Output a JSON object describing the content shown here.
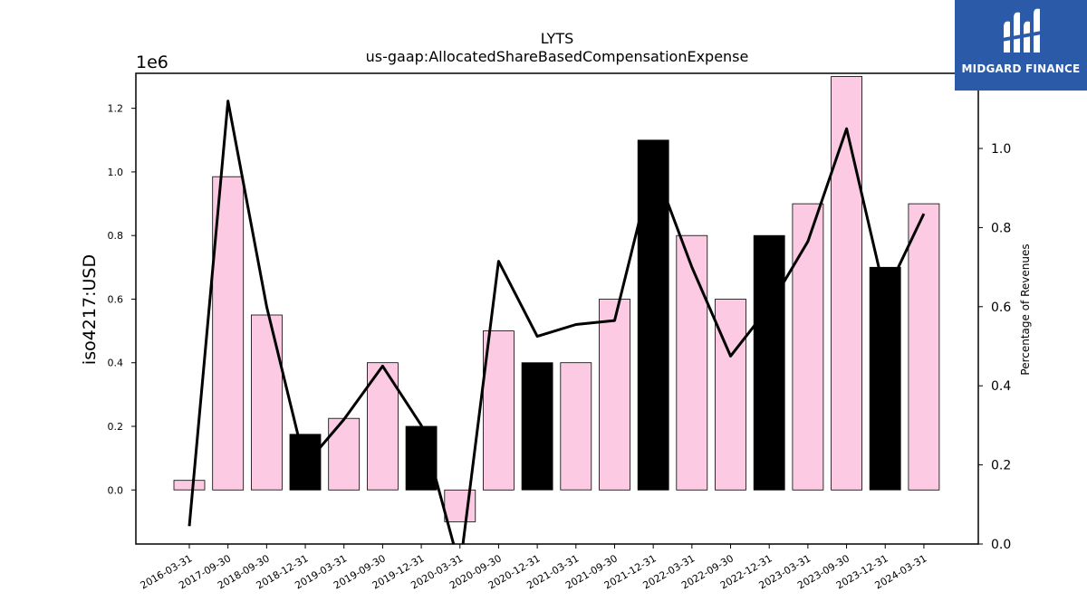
{
  "logo": {
    "text": "MIDGARD FINANCE",
    "background": "#2a5aa8"
  },
  "chart_data": {
    "type": "bar",
    "title": "LYTS",
    "subtitle": "us-gaap:AllocatedShareBasedCompensationExpense",
    "ylabel": "iso4217:USD",
    "y2label": "Percentage of Revenues",
    "y_offset_label": "1e6",
    "categories": [
      "2016-03-31",
      "2017-09-30",
      "2018-09-30",
      "2018-12-31",
      "2019-03-31",
      "2019-09-30",
      "2019-12-31",
      "2020-03-31",
      "2020-09-30",
      "2020-12-31",
      "2021-03-31",
      "2021-09-30",
      "2021-12-31",
      "2022-03-31",
      "2022-09-30",
      "2022-12-31",
      "2023-03-31",
      "2023-09-30",
      "2023-12-31",
      "2024-03-31"
    ],
    "series": [
      {
        "type": "bar",
        "values": [
          30000,
          985000,
          550000,
          175000,
          225000,
          400000,
          200000,
          -100000,
          500000,
          400000,
          400000,
          600000,
          1100000,
          800000,
          600000,
          800000,
          900000,
          1300000,
          700000,
          900000
        ],
        "bar_colors": [
          "#fccbe3",
          "#fccbe3",
          "#fccbe3",
          "#000000",
          "#fccbe3",
          "#fccbe3",
          "#000000",
          "#fccbe3",
          "#fccbe3",
          "#000000",
          "#fccbe3",
          "#fccbe3",
          "#000000",
          "#fccbe3",
          "#fccbe3",
          "#000000",
          "#fccbe3",
          "#fccbe3",
          "#000000",
          "#fccbe3"
        ]
      },
      {
        "type": "line",
        "axis": "right",
        "color": "#000000",
        "values": [
          0.045,
          1.12,
          0.6,
          0.2,
          0.315,
          0.45,
          0.3,
          -0.06,
          0.715,
          0.525,
          0.555,
          0.565,
          0.96,
          0.7,
          0.475,
          0.6,
          0.765,
          1.05,
          0.63,
          0.835
        ]
      }
    ],
    "ylim": [
      -170000,
      1310000
    ],
    "y2lim": [
      0,
      1.19
    ],
    "yticks": [
      0,
      200000,
      400000,
      600000,
      800000,
      1000000,
      1200000
    ],
    "ytick_labels": [
      "0.0",
      "0.2",
      "0.4",
      "0.6",
      "0.8",
      "1.0",
      "1.2"
    ],
    "y2ticks": [
      0,
      0.2,
      0.4,
      0.6,
      0.8,
      1.0
    ],
    "y2tick_labels": [
      "0.0",
      "0.2",
      "0.4",
      "0.6",
      "0.8",
      "1.0"
    ],
    "grid": false,
    "legend": "none"
  }
}
